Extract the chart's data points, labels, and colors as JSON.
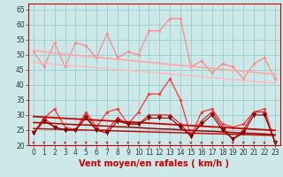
{
  "x": [
    0,
    1,
    2,
    3,
    4,
    5,
    6,
    7,
    8,
    9,
    10,
    11,
    12,
    13,
    14,
    15,
    16,
    17,
    18,
    19,
    20,
    21,
    22,
    23
  ],
  "series": [
    {
      "name": "rafales_zigzag",
      "color": "#ff8888",
      "lw": 0.9,
      "marker": "o",
      "ms": 2.0,
      "values": [
        51,
        46,
        54,
        46,
        54,
        53,
        49,
        57,
        49,
        51,
        50,
        58,
        58,
        62,
        62,
        46,
        48,
        44,
        47,
        46,
        42,
        47,
        49,
        42
      ]
    },
    {
      "name": "rafales_trend_upper",
      "color": "#ffaaaa",
      "lw": 1.3,
      "marker": null,
      "values": [
        51.5,
        51.0,
        50.5,
        50.2,
        49.8,
        49.5,
        49.2,
        48.8,
        48.5,
        48.2,
        47.8,
        47.5,
        47.2,
        46.8,
        46.5,
        46.2,
        45.8,
        45.5,
        45.2,
        44.8,
        44.5,
        44.2,
        43.8,
        43.5
      ]
    },
    {
      "name": "rafales_trend_lower",
      "color": "#ffbbbb",
      "lw": 1.1,
      "marker": null,
      "values": [
        47.5,
        47.2,
        46.9,
        46.6,
        46.3,
        46.0,
        45.7,
        45.4,
        45.1,
        44.8,
        44.5,
        44.2,
        43.9,
        43.6,
        43.3,
        43.0,
        42.7,
        42.4,
        42.1,
        41.8,
        41.5,
        41.2,
        40.9,
        40.6
      ]
    },
    {
      "name": "vent_zigzag1",
      "color": "#ff3333",
      "lw": 0.9,
      "marker": "o",
      "ms": 2.0,
      "values": [
        24,
        29,
        32,
        26,
        25,
        31,
        26,
        31,
        32,
        27,
        31,
        37,
        37,
        42,
        35,
        23,
        31,
        32,
        27,
        26,
        27,
        31,
        32,
        21
      ]
    },
    {
      "name": "vent_zigzag2",
      "color": "#dd2222",
      "lw": 0.9,
      "marker": "o",
      "ms": 2.0,
      "values": [
        24,
        29,
        26,
        25,
        25,
        30,
        25,
        25,
        29,
        27,
        27,
        30,
        30,
        30,
        27,
        23,
        28,
        31,
        26,
        22,
        25,
        31,
        31,
        21
      ]
    },
    {
      "name": "vent_trend1",
      "color": "#cc0000",
      "lw": 1.3,
      "marker": null,
      "values": [
        29.5,
        29.3,
        29.1,
        28.9,
        28.7,
        28.5,
        28.3,
        28.1,
        27.9,
        27.7,
        27.5,
        27.3,
        27.1,
        26.9,
        26.7,
        26.5,
        26.3,
        26.1,
        25.9,
        25.7,
        25.5,
        25.3,
        25.1,
        24.9
      ]
    },
    {
      "name": "vent_trend2",
      "color": "#aa0000",
      "lw": 1.1,
      "marker": null,
      "values": [
        27.5,
        27.4,
        27.2,
        27.0,
        26.8,
        26.7,
        26.5,
        26.3,
        26.1,
        26.0,
        25.8,
        25.6,
        25.4,
        25.3,
        25.1,
        24.9,
        24.7,
        24.6,
        24.4,
        24.2,
        24.0,
        23.9,
        23.7,
        23.5
      ]
    },
    {
      "name": "vent_flat1",
      "color": "#bb0000",
      "lw": 1.0,
      "marker": null,
      "values": [
        25.5,
        25.4,
        25.3,
        25.2,
        25.1,
        25.0,
        24.9,
        24.8,
        24.7,
        24.6,
        24.5,
        24.4,
        24.3,
        24.2,
        24.1,
        24.0,
        23.9,
        23.8,
        23.7,
        23.6,
        23.5,
        23.4,
        23.3,
        23.2
      ]
    },
    {
      "name": "vent_arrows",
      "color": "#880000",
      "lw": 0.8,
      "marker": "v",
      "ms": 3.5,
      "values": [
        24,
        28,
        26,
        25,
        25,
        29,
        25,
        24,
        28,
        27,
        27,
        29,
        29,
        29,
        26,
        23,
        27,
        30,
        25,
        22,
        24,
        30,
        30,
        21
      ]
    }
  ],
  "xlabel": "Vent moyen/en rafales ( km/h )",
  "ylim": [
    20,
    67
  ],
  "yticks": [
    20,
    25,
    30,
    35,
    40,
    45,
    50,
    55,
    60,
    65
  ],
  "xticks": [
    0,
    1,
    2,
    3,
    4,
    5,
    6,
    7,
    8,
    9,
    10,
    11,
    12,
    13,
    14,
    15,
    16,
    17,
    18,
    19,
    20,
    21,
    22,
    23
  ],
  "bg_color": "#cce8e8",
  "grid_color": "#99cccc",
  "xlabel_fontsize": 7,
  "tick_fontsize": 5.5
}
